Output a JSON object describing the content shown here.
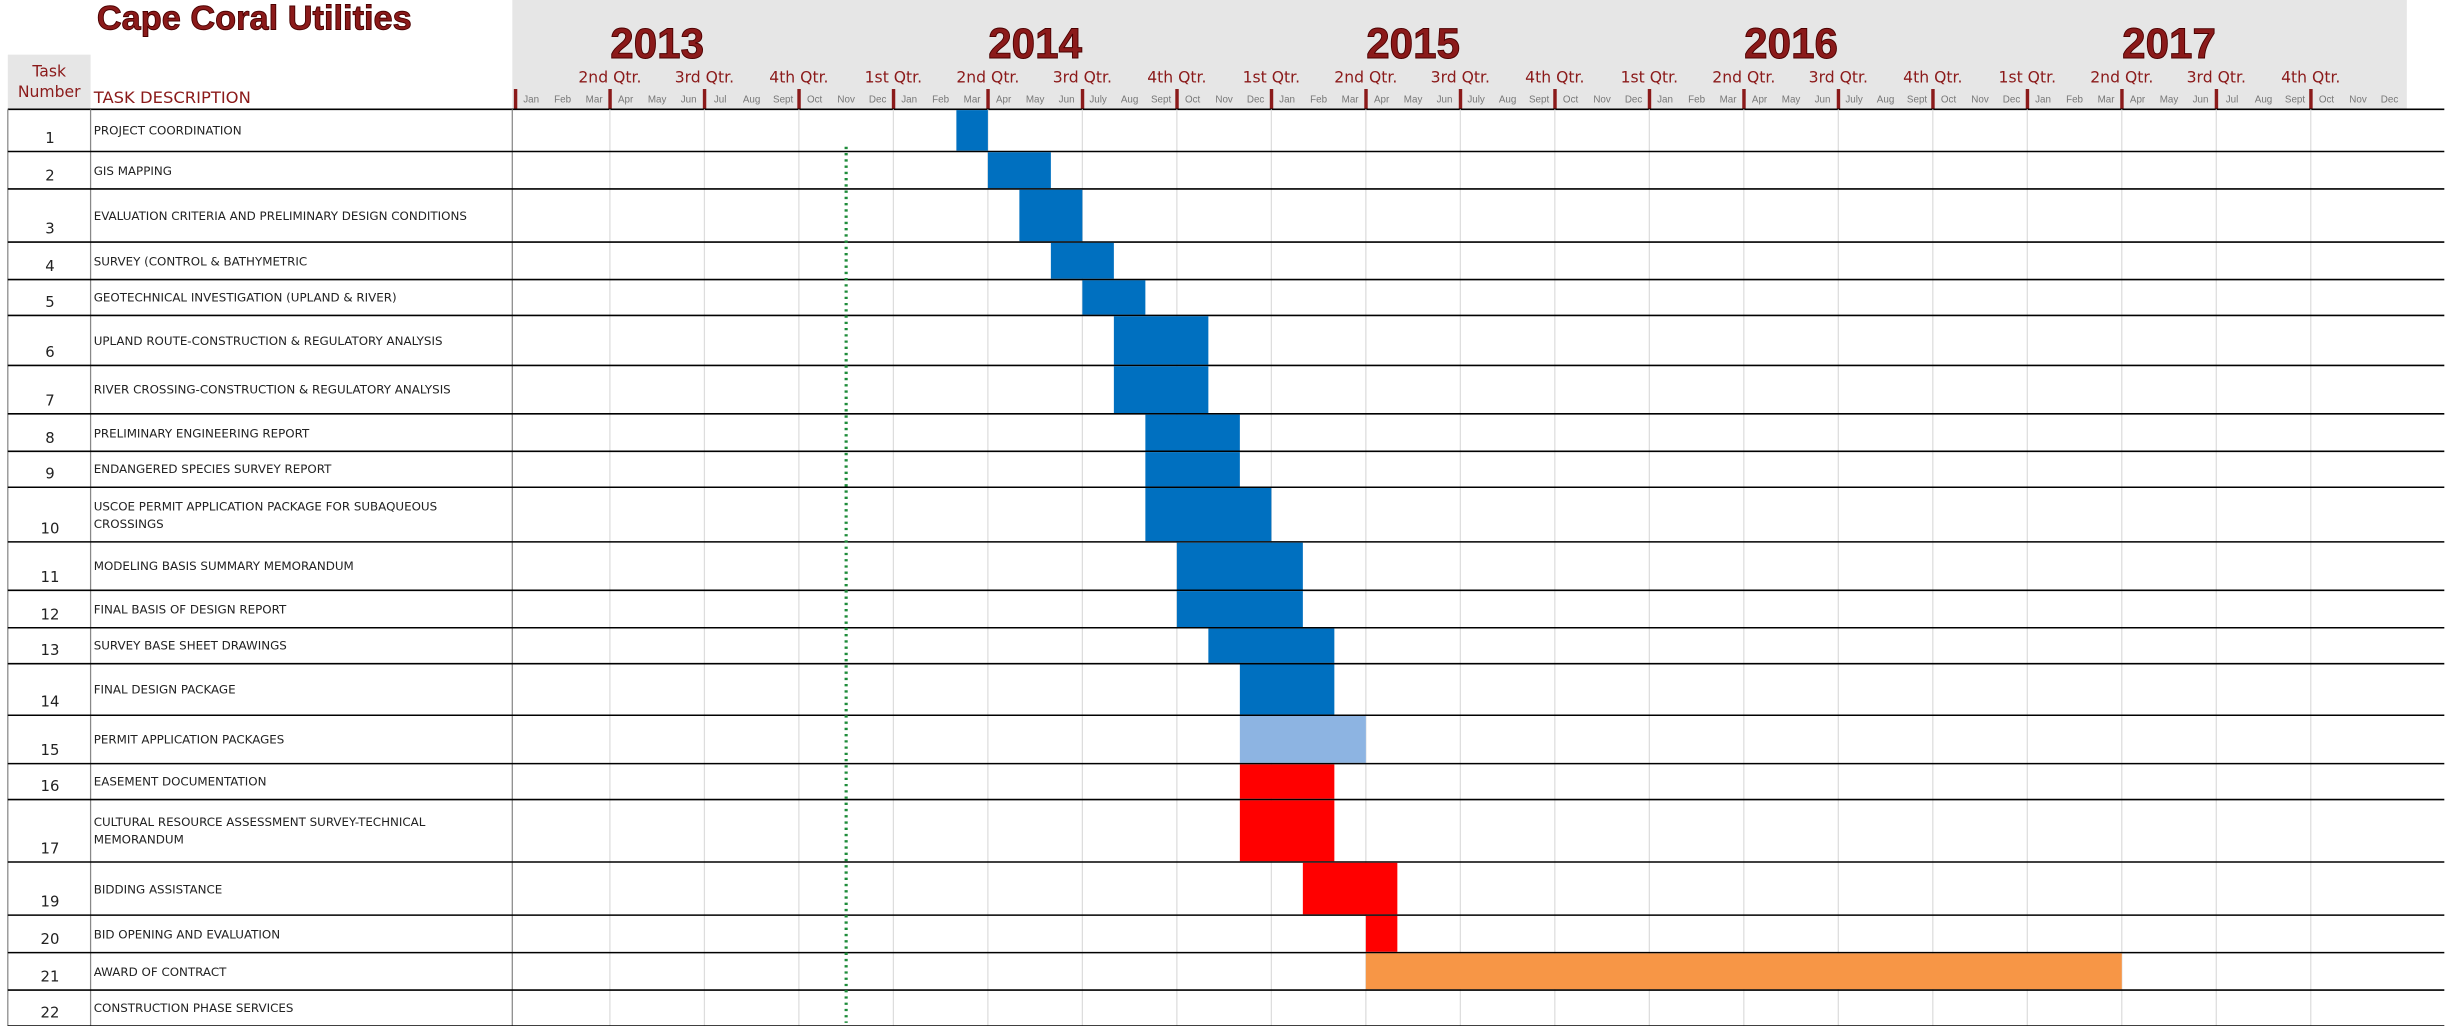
{
  "chart_data": {
    "type": "gantt",
    "title": "Cape Coral Utilities",
    "header": {
      "task_number": "Task Number",
      "task_description": "TASK DESCRIPTION"
    },
    "xlim": [
      "2013-01",
      "2017-12"
    ],
    "years": [
      "2013",
      "2014",
      "2015",
      "2016",
      "2017"
    ],
    "quarters": [
      null,
      "2nd Qtr.",
      "3rd Qtr.",
      "4th Qtr.",
      "1st Qtr.",
      "2nd Qtr.",
      "3rd Qtr.",
      "4th Qtr.",
      "1st Qtr.",
      "2nd Qtr.",
      "3rd Qtr.",
      "4th Qtr.",
      "1st Qtr.",
      "2nd Qtr.",
      "3rd Qtr.",
      "4th Qtr.",
      "1st Qtr.",
      "2nd Qtr.",
      "3rd Qtr.",
      "4th Qtr."
    ],
    "months": [
      "Jan",
      "Feb",
      "Mar",
      "Apr",
      "May",
      "Jun",
      "Jul",
      "Aug",
      "Sept",
      "Oct",
      "Nov",
      "Dec",
      "Jan",
      "Feb",
      "Mar",
      "Apr",
      "May",
      "Jun",
      "July",
      "Aug",
      "Sept",
      "Oct",
      "Nov",
      "Dec",
      "Jan",
      "Feb",
      "Mar",
      "Apr",
      "May",
      "Jun",
      "July",
      "Aug",
      "Sept",
      "Oct",
      "Nov",
      "Dec",
      "Jan",
      "Feb",
      "Mar",
      "Apr",
      "May",
      "Jun",
      "July",
      "Aug",
      "Sept",
      "Oct",
      "Nov",
      "Dec",
      "Jan",
      "Feb",
      "Mar",
      "Apr",
      "May",
      "Jun",
      "Jul",
      "Aug",
      "Sept",
      "Oct",
      "Nov",
      "Dec"
    ],
    "status_line": "2013-11",
    "tasks": [
      {
        "number": 1,
        "description": "PROJECT COORDINATION",
        "start": "2014-03",
        "end": "2014-03",
        "color": "#0070c0"
      },
      {
        "number": 2,
        "description": "GIS MAPPING",
        "start": "2014-04",
        "end": "2014-05",
        "color": "#0070c0"
      },
      {
        "number": 3,
        "description": "EVALUATION CRITERIA AND PRELIMINARY DESIGN CONDITIONS",
        "start": "2014-05",
        "end": "2014-06",
        "color": "#0070c0"
      },
      {
        "number": 4,
        "description": "SURVEY (CONTROL & BATHYMETRIC",
        "start": "2014-06",
        "end": "2014-07",
        "color": "#0070c0"
      },
      {
        "number": 5,
        "description": "GEOTECHNICAL INVESTIGATION (UPLAND & RIVER)",
        "start": "2014-07",
        "end": "2014-08",
        "color": "#0070c0"
      },
      {
        "number": 6,
        "description": "UPLAND ROUTE-CONSTRUCTION & REGULATORY ANALYSIS",
        "start": "2014-08",
        "end": "2014-10",
        "color": "#0070c0"
      },
      {
        "number": 7,
        "description": "RIVER CROSSING-CONSTRUCTION & REGULATORY ANALYSIS",
        "start": "2014-08",
        "end": "2014-10",
        "color": "#0070c0"
      },
      {
        "number": 8,
        "description": "PRELIMINARY ENGINEERING REPORT",
        "start": "2014-09",
        "end": "2014-11",
        "color": "#0070c0"
      },
      {
        "number": 9,
        "description": "ENDANGERED SPECIES SURVEY REPORT",
        "start": "2014-09",
        "end": "2014-11",
        "color": "#0070c0"
      },
      {
        "number": 10,
        "description": "USCOE PERMIT APPLICATION PACKAGE FOR SUBAQUEOUS CROSSINGS",
        "start": "2014-09",
        "end": "2014-12",
        "color": "#0070c0"
      },
      {
        "number": 11,
        "description": "MODELING BASIS SUMMARY MEMORANDUM",
        "start": "2014-10",
        "end": "2015-01",
        "color": "#0070c0"
      },
      {
        "number": 12,
        "description": "FINAL BASIS OF DESIGN REPORT",
        "start": "2014-10",
        "end": "2015-01",
        "color": "#0070c0"
      },
      {
        "number": 13,
        "description": "SURVEY BASE SHEET DRAWINGS",
        "start": "2014-11",
        "end": "2015-02",
        "color": "#0070c0"
      },
      {
        "number": 14,
        "description": "FINAL DESIGN PACKAGE",
        "start": "2014-12",
        "end": "2015-02",
        "color": "#0070c0"
      },
      {
        "number": 15,
        "description": "PERMIT APPLICATION PACKAGES",
        "start": "2014-12",
        "end": "2015-03",
        "color": "#8db4e2"
      },
      {
        "number": 16,
        "description": "EASEMENT DOCUMENTATION",
        "start": "2014-12",
        "end": "2015-02",
        "color": "#ff0000"
      },
      {
        "number": 17,
        "description": "CULTURAL RESOURCE ASSESSMENT SURVEY-TECHNICAL MEMORANDUM",
        "start": "2014-12",
        "end": "2015-02",
        "color": "#ff0000"
      },
      {
        "number": 19,
        "description": "BIDDING ASSISTANCE",
        "start": "2015-02",
        "end": "2015-04",
        "color": "#ff0000"
      },
      {
        "number": 20,
        "description": "BID OPENING AND EVALUATION",
        "start": "2015-04",
        "end": "2015-04",
        "color": "#ff0000"
      },
      {
        "number": 21,
        "description": "AWARD OF CONTRACT",
        "start": "2015-04",
        "end": "2017-03",
        "color": "#f79646"
      },
      {
        "number": 22,
        "description": "CONSTRUCTION PHASE SERVICES",
        "start": null,
        "end": null,
        "color": null
      }
    ]
  }
}
